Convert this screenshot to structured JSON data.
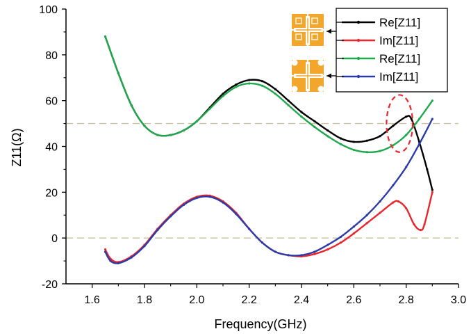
{
  "chart_data": {
    "type": "line",
    "xlabel": "Frequency(GHz)",
    "ylabel": "Z11(Ω)",
    "xlim": [
      1.5,
      3.0
    ],
    "ylim": [
      -20,
      100
    ],
    "xticks": [
      "1.6",
      "1.8",
      "2.0",
      "2.2",
      "2.4",
      "2.6",
      "2.8",
      "3.0"
    ],
    "yticks": [
      "-20",
      "0",
      "20",
      "40",
      "60",
      "80",
      "100"
    ],
    "reference_lines_y": [
      0,
      50
    ],
    "legend_position": "top-right",
    "series": [
      {
        "name": "Re[Z11]",
        "color": "#000000",
        "x": [
          1.65,
          1.7,
          1.75,
          1.8,
          1.85,
          1.9,
          1.95,
          2.0,
          2.05,
          2.1,
          2.15,
          2.2,
          2.25,
          2.3,
          2.35,
          2.4,
          2.45,
          2.5,
          2.55,
          2.6,
          2.65,
          2.7,
          2.75,
          2.8,
          2.82,
          2.85,
          2.88,
          2.9
        ],
        "y": [
          88,
          72,
          58,
          49,
          45,
          45,
          47,
          51,
          57,
          63,
          67,
          69,
          68.5,
          65,
          60,
          55,
          51,
          47,
          43.5,
          42,
          42.5,
          44.5,
          49,
          53,
          52,
          42,
          30,
          21
        ]
      },
      {
        "name": "Im[Z11]",
        "color": "#e8262b",
        "x": [
          1.65,
          1.67,
          1.7,
          1.75,
          1.8,
          1.85,
          1.9,
          1.95,
          2.0,
          2.05,
          2.1,
          2.15,
          2.2,
          2.25,
          2.3,
          2.35,
          2.4,
          2.45,
          2.5,
          2.55,
          2.6,
          2.65,
          2.7,
          2.75,
          2.77,
          2.8,
          2.83,
          2.855,
          2.87,
          2.9
        ],
        "y": [
          -5,
          -9,
          -10.5,
          -8,
          -3,
          4,
          10,
          15,
          18,
          18.5,
          16,
          11,
          4,
          -2,
          -6,
          -7.5,
          -8,
          -7,
          -5,
          -2,
          2,
          6.5,
          11,
          15.5,
          16,
          13,
          6,
          3.5,
          6,
          20
        ]
      },
      {
        "name": "Re[Z11]",
        "color": "#1fa84b",
        "x": [
          1.65,
          1.7,
          1.75,
          1.8,
          1.85,
          1.9,
          1.95,
          2.0,
          2.05,
          2.1,
          2.15,
          2.2,
          2.25,
          2.3,
          2.35,
          2.4,
          2.45,
          2.5,
          2.55,
          2.6,
          2.65,
          2.7,
          2.75,
          2.8,
          2.85,
          2.9
        ],
        "y": [
          88,
          72,
          58,
          49,
          45,
          45,
          47,
          51,
          56.5,
          62,
          66,
          67.5,
          66.5,
          63,
          58,
          53,
          48.5,
          44.5,
          41,
          38.5,
          37.5,
          38,
          40.5,
          45,
          52,
          60
        ]
      },
      {
        "name": "Im[Z11]",
        "color": "#2a3aa8",
        "x": [
          1.65,
          1.67,
          1.7,
          1.75,
          1.8,
          1.85,
          1.9,
          1.95,
          2.0,
          2.05,
          2.1,
          2.15,
          2.2,
          2.25,
          2.3,
          2.35,
          2.4,
          2.45,
          2.5,
          2.55,
          2.6,
          2.65,
          2.7,
          2.75,
          2.8,
          2.85,
          2.9
        ],
        "y": [
          -6,
          -10,
          -11,
          -8.5,
          -3.5,
          3.5,
          9.5,
          14.5,
          17.5,
          18,
          15.5,
          10.5,
          4,
          -2,
          -6,
          -7.5,
          -7.5,
          -6,
          -3,
          0.5,
          5,
          10,
          16,
          23,
          31,
          41,
          52
        ]
      }
    ],
    "annotations": [
      {
        "type": "dashed-ellipse",
        "color": "#e8262b",
        "cx": 2.775,
        "cy": 50,
        "rx": 0.05,
        "ry": 12.5
      }
    ],
    "legend_icons": [
      {
        "label_series": [
          0,
          1
        ],
        "icon": "antenna-element-icon-a"
      },
      {
        "label_series": [
          2,
          3
        ],
        "icon": "antenna-element-icon-b"
      }
    ]
  }
}
